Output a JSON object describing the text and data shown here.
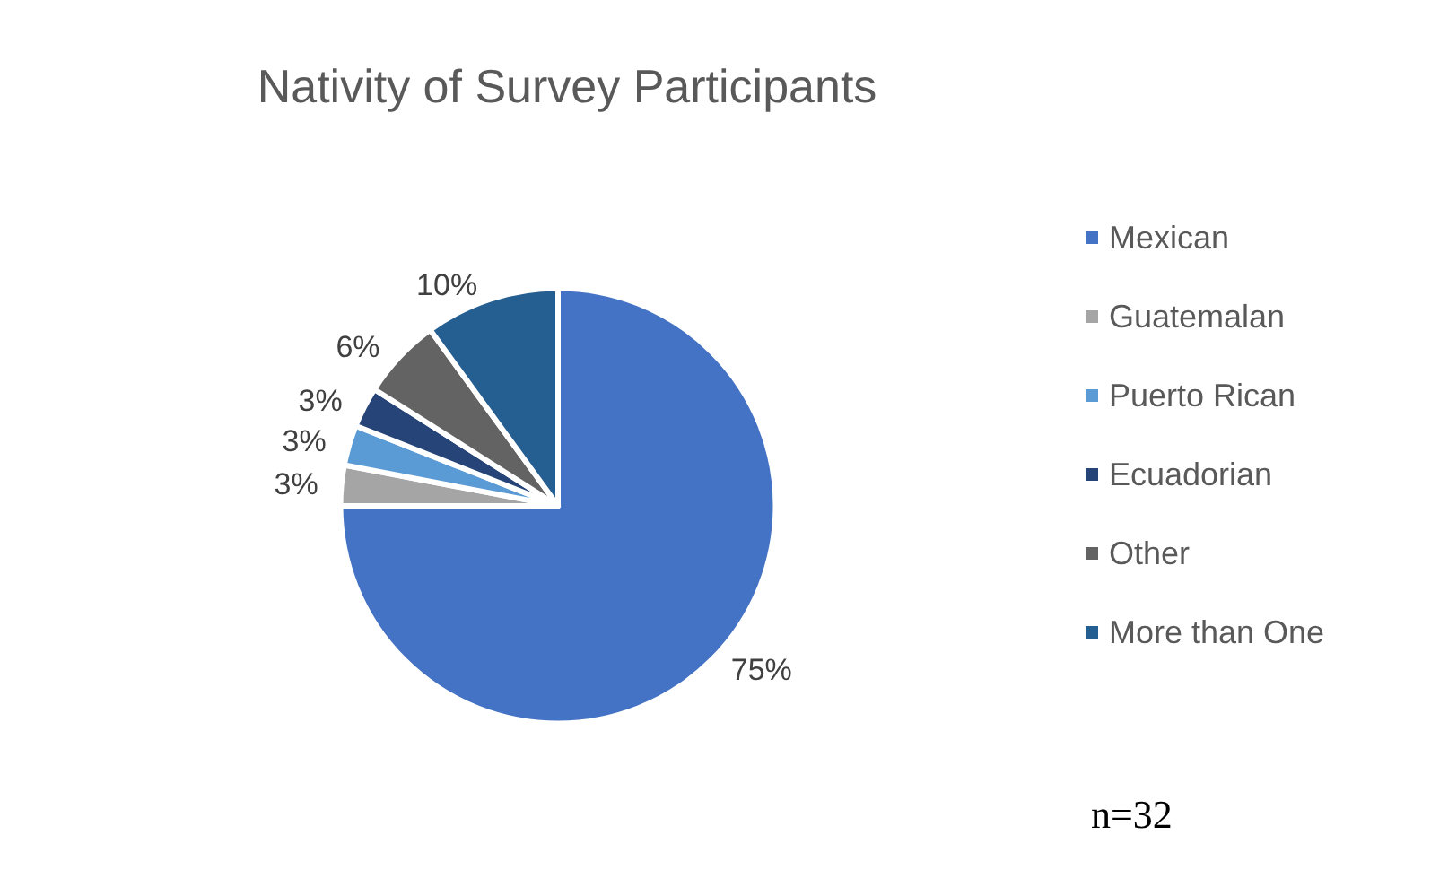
{
  "chart_data": {
    "type": "pie",
    "title": "Nativity of Survey Participants",
    "categories": [
      "Mexican",
      "Guatemalan",
      "Puerto Rican",
      "Ecuadorian",
      "Other",
      "More than One"
    ],
    "values": [
      75,
      3,
      3,
      3,
      6,
      10
    ],
    "colors": [
      "#4472c4",
      "#a5a5a5",
      "#5b9bd5",
      "#264478",
      "#636363",
      "#255e91"
    ],
    "value_labels": [
      "75%",
      "3%",
      "3%",
      "3%",
      "6%",
      "10%"
    ],
    "legend": "right",
    "annotations": [
      "n=32"
    ]
  }
}
